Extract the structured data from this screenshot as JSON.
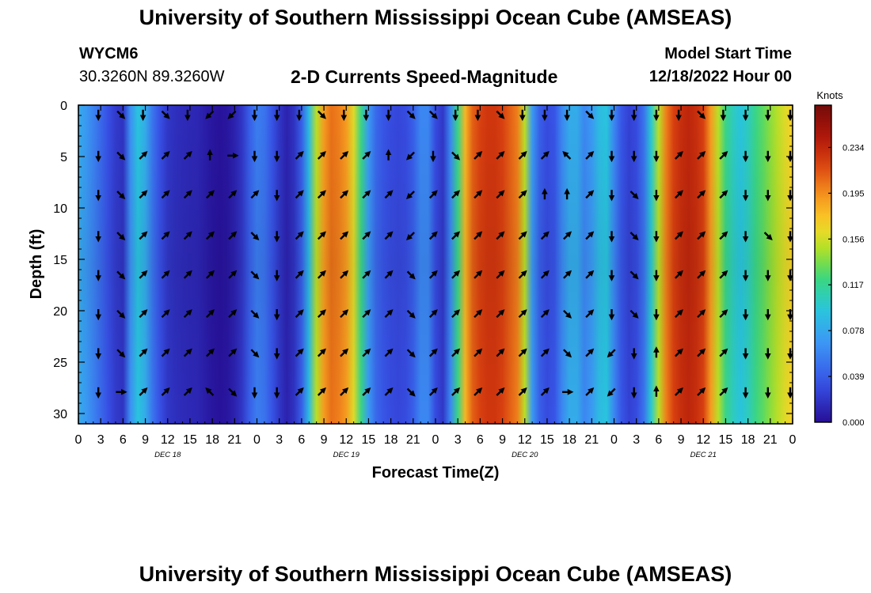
{
  "header": {
    "title_top": "University of Southern Mississippi Ocean Cube (AMSEAS)",
    "title_bottom": "University of Southern Mississippi Ocean Cube (AMSEAS)",
    "station_id": "WYCM6",
    "station_coords": "30.3260N  89.3260W",
    "chart_title": "2-D Currents Speed-Magnitude",
    "model_start_label": "Model Start Time",
    "model_start_value": "12/18/2022 Hour 00"
  },
  "chart_data": {
    "type": "heatmap",
    "title": "2-D Currents Speed-Magnitude",
    "xlabel": "Forecast Time(Z)",
    "ylabel": "Depth (ft)",
    "xlim": [
      0,
      96
    ],
    "ylim": [
      0,
      31
    ],
    "y_inverted": true,
    "x_tick_values": [
      0,
      3,
      6,
      9,
      12,
      15,
      18,
      21,
      24,
      27,
      30,
      33,
      36,
      39,
      42,
      45,
      48,
      51,
      54,
      57,
      60,
      63,
      66,
      69,
      72,
      75,
      78,
      81,
      84,
      87,
      90,
      93,
      96
    ],
    "x_tick_labels": [
      "0",
      "3",
      "6",
      "9",
      "12",
      "15",
      "18",
      "21",
      "0",
      "3",
      "6",
      "9",
      "12",
      "15",
      "18",
      "21",
      "0",
      "3",
      "6",
      "9",
      "12",
      "15",
      "18",
      "21",
      "0",
      "3",
      "6",
      "9",
      "12",
      "15",
      "18",
      "21",
      "0"
    ],
    "day_labels": [
      {
        "label": "DEC 18",
        "hour": 12
      },
      {
        "label": "DEC 19",
        "hour": 36
      },
      {
        "label": "DEC 20",
        "hour": 60
      },
      {
        "label": "DEC 21",
        "hour": 84
      }
    ],
    "y_tick_values": [
      0,
      5,
      10,
      15,
      20,
      25,
      30
    ],
    "y_tick_labels": [
      "0",
      "5",
      "10",
      "15",
      "20",
      "25",
      "30"
    ],
    "colorbar": {
      "unit": "Knots",
      "range": [
        0,
        0.27
      ],
      "ticks": [
        0.0,
        0.039,
        0.078,
        0.117,
        0.156,
        0.195,
        0.234
      ],
      "tick_labels": [
        "0.000",
        "0.039",
        "0.078",
        "0.117",
        "0.156",
        "0.195",
        "0.234"
      ]
    },
    "speed_by_hour": {
      "hours": [
        0,
        1,
        2,
        3,
        4,
        5,
        6,
        7,
        8,
        9,
        10,
        11,
        12,
        13,
        14,
        15,
        16,
        17,
        18,
        19,
        20,
        21,
        22,
        23,
        24,
        25,
        26,
        27,
        28,
        29,
        30,
        31,
        32,
        33,
        34,
        35,
        36,
        37,
        38,
        39,
        40,
        41,
        42,
        43,
        44,
        45,
        46,
        47,
        48,
        49,
        50,
        51,
        52,
        53,
        54,
        55,
        56,
        57,
        58,
        59,
        60,
        61,
        62,
        63,
        64,
        65,
        66,
        67,
        68,
        69,
        70,
        71,
        72,
        73,
        74,
        75,
        76,
        77,
        78,
        79,
        80,
        81,
        82,
        83,
        84,
        85,
        86,
        87,
        88,
        89,
        90,
        91,
        92,
        93,
        94,
        95,
        96
      ],
      "values": [
        0.08,
        0.07,
        0.058,
        0.045,
        0.032,
        0.022,
        0.018,
        0.065,
        0.095,
        0.08,
        0.05,
        0.032,
        0.02,
        0.016,
        0.014,
        0.013,
        0.012,
        0.008,
        0.004,
        0.002,
        0.004,
        0.01,
        0.02,
        0.04,
        0.055,
        0.05,
        0.035,
        0.02,
        0.01,
        0.018,
        0.04,
        0.09,
        0.15,
        0.19,
        0.205,
        0.2,
        0.19,
        0.16,
        0.12,
        0.07,
        0.045,
        0.035,
        0.03,
        0.028,
        0.03,
        0.04,
        0.06,
        0.06,
        0.03,
        0.02,
        0.06,
        0.12,
        0.18,
        0.21,
        0.22,
        0.225,
        0.225,
        0.22,
        0.21,
        0.2,
        0.15,
        0.07,
        0.04,
        0.03,
        0.035,
        0.06,
        0.08,
        0.08,
        0.06,
        0.07,
        0.09,
        0.095,
        0.06,
        0.035,
        0.025,
        0.03,
        0.05,
        0.1,
        0.15,
        0.2,
        0.22,
        0.23,
        0.235,
        0.23,
        0.22,
        0.19,
        0.15,
        0.12,
        0.105,
        0.095,
        0.105,
        0.12,
        0.13,
        0.14,
        0.15,
        0.16,
        0.17
      ]
    },
    "arrow_rows_depth_ft": [
      0.6,
      4.6,
      8.4,
      12.4,
      16.2,
      20.0,
      23.8,
      27.6
    ],
    "arrow_cols_hour": [
      3,
      6,
      9,
      12,
      15,
      18,
      21,
      24,
      27,
      30,
      33,
      36,
      39,
      42,
      45,
      48,
      51,
      54,
      57,
      60,
      63,
      66,
      69,
      72,
      75,
      78,
      81,
      84,
      87,
      90,
      93,
      96
    ],
    "arrow_directions": [
      "S,SE,S,SE,S,SW,SW,S,S,S,SE,S,S,S,SE,SE,S,S,SE,S,S,S,SE,S,S,S,S,SE,S,S,S,S",
      "S,SE,NE,NE,NE,N,E,S,S,NE,NE,NE,NE,N,SW,S,SE,NE,NE,NE,NE,NW,NE,S,S,S,NE,NE,NE,S,S,S",
      "S,SE,NE,NE,NE,NE,NE,NE,S,NE,NE,NE,NE,NE,SW,NE,NE,NE,NE,NE,N,N,NE,S,SE,S,NE,NE,NE,S,S,S",
      "S,SE,NE,NE,NE,NE,NE,SE,S,NE,NE,NE,NE,NE,SW,NE,NE,NE,NE,NE,NE,NE,NE,S,SE,S,NE,NE,NE,S,SE,S",
      "S,SE,NE,NE,NE,NE,NE,SE,S,NE,NE,NE,NE,NE,SE,NE,NE,NE,NE,NE,NE,NE,NE,S,SE,S,NE,NE,NE,S,S,S",
      "S,SE,NE,NE,NE,NE,NE,SE,S,NE,NE,NE,NE,NE,SE,NE,NE,NE,NE,NE,NE,SE,NE,S,SE,S,NE,NE,NE,S,S,S",
      "S,SE,NE,NE,NE,NE,NE,SE,S,NE,NE,NE,NE,NE,SE,NE,NE,NE,NE,NE,NE,SE,NE,SW,S,N,NE,NE,NE,S,S,S",
      "S,E,NE,NE,NE,NW,SE,S,S,NE,NE,NE,NE,NE,SE,NE,NE,NE,NE,NE,NE,E,NE,SW,S,N,NE,NE,NE,S,S,S"
    ]
  }
}
